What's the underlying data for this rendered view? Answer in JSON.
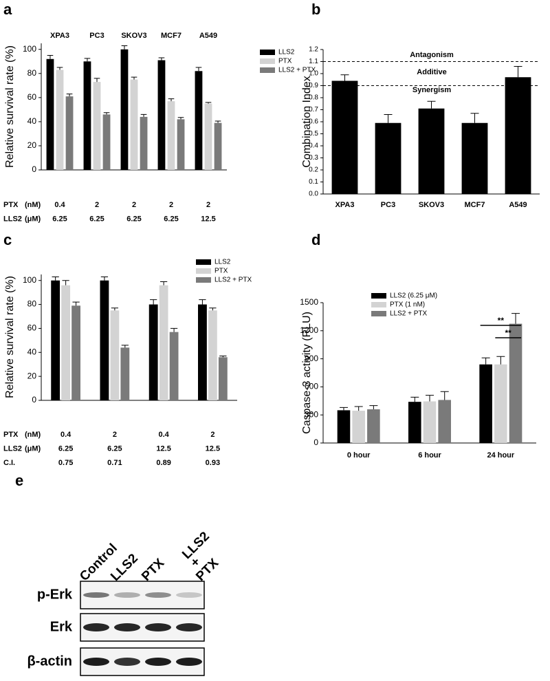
{
  "chart_data": [
    {
      "type": "bar",
      "panel": "a",
      "y_label": "Relative survival rate (%)",
      "categories": [
        "XPA3",
        "PC3",
        "SKOV3",
        "MCF7",
        "A549"
      ],
      "series": [
        {
          "name": "LLS2",
          "color": "#000000",
          "values": [
            92,
            90,
            100,
            91,
            82
          ],
          "errors": [
            3,
            2.5,
            3,
            2,
            3
          ]
        },
        {
          "name": "PTX",
          "color": "#d3d3d3",
          "values": [
            83,
            73,
            75,
            57,
            55
          ],
          "errors": [
            2,
            3,
            2,
            2,
            1
          ]
        },
        {
          "name": "LLS2 + PTX",
          "color": "#7a7a7a",
          "values": [
            61,
            46,
            44,
            42,
            39
          ],
          "errors": [
            2,
            1.5,
            2,
            1.5,
            1.5
          ]
        }
      ],
      "conditions": [
        {
          "label": "PTX",
          "unit": "(nM)",
          "values": [
            0.4,
            2,
            2,
            2,
            2
          ]
        },
        {
          "label": "LLS2",
          "unit": "(μM)",
          "values": [
            6.25,
            6.25,
            6.25,
            6.25,
            12.5
          ]
        }
      ],
      "ylim": [
        0,
        105
      ],
      "yticks": [
        0,
        20,
        40,
        60,
        80,
        100
      ]
    },
    {
      "type": "bar",
      "panel": "b",
      "y_label": "Combination Index",
      "categories": [
        "XPA3",
        "PC3",
        "SKOV3",
        "MCF7",
        "A549"
      ],
      "values": [
        0.94,
        0.59,
        0.71,
        0.59,
        0.97
      ],
      "errors": [
        0.05,
        0.07,
        0.06,
        0.08,
        0.09
      ],
      "color": "#000000",
      "hlines": [
        1.1,
        0.9
      ],
      "annotations": [
        "Antagonism",
        "Additive",
        "Synergism"
      ],
      "ylim": [
        0,
        1.2
      ],
      "yticks": [
        {
          "value": 0,
          "label": "0.0"
        },
        0.1,
        0.2,
        0.3,
        0.4,
        0.5,
        0.6,
        0.7,
        0.8,
        0.9,
        {
          "value": 1,
          "label": "1.0"
        },
        1.1,
        1.2
      ]
    },
    {
      "type": "bar",
      "panel": "c",
      "y_label": "Relative survival rate (%)",
      "series": [
        {
          "name": "LLS2",
          "color": "#000000",
          "values": [
            100,
            100,
            80,
            80
          ],
          "errors": [
            3,
            3,
            4,
            4
          ]
        },
        {
          "name": "PTX",
          "color": "#d3d3d3",
          "values": [
            96,
            75,
            96,
            75
          ],
          "errors": [
            4,
            2,
            3,
            2
          ]
        },
        {
          "name": "LLS2 + PTX",
          "color": "#7a7a7a",
          "values": [
            79,
            44,
            57,
            36
          ],
          "errors": [
            3,
            2,
            3,
            1
          ]
        }
      ],
      "conditions": [
        {
          "label": "PTX",
          "unit": "(nM)",
          "values": [
            0.4,
            2,
            0.4,
            2
          ]
        },
        {
          "label": "LLS2",
          "unit": "(μM)",
          "values": [
            6.25,
            6.25,
            12.5,
            12.5
          ]
        },
        {
          "label": "C.I.",
          "values": [
            0.75,
            0.71,
            0.89,
            0.93
          ]
        }
      ],
      "ylim": [
        0,
        105
      ],
      "yticks": [
        0,
        20,
        40,
        60,
        80,
        100
      ]
    },
    {
      "type": "bar",
      "panel": "d",
      "y_label": "Caspase-3 activity (RLU)",
      "categories": [
        "0 hour",
        "6 hour",
        "24 hour"
      ],
      "series": [
        {
          "name": "LLS2 (6.25 μM)",
          "color": "#000000",
          "values": [
            350,
            440,
            840
          ],
          "errors": [
            30,
            50,
            70
          ]
        },
        {
          "name": "PTX (1 nM)",
          "color": "#d3d3d3",
          "values": [
            345,
            445,
            840
          ],
          "errors": [
            45,
            65,
            85
          ]
        },
        {
          "name": "LLS2 + PTX",
          "color": "#7a7a7a",
          "values": [
            360,
            460,
            1275
          ],
          "errors": [
            40,
            90,
            110
          ]
        }
      ],
      "significance": [
        "**",
        "**"
      ],
      "ylim": [
        0,
        1500
      ],
      "yticks": [
        0,
        300,
        600,
        900,
        1200,
        1500
      ]
    }
  ],
  "blot": {
    "panel": "e",
    "lanes": [
      [
        "Control"
      ],
      [
        "LLS2"
      ],
      [
        "PTX"
      ],
      [
        "LLS2",
        "+",
        "PTX"
      ]
    ],
    "rows": [
      "p-Erk",
      "Erk",
      "β-actin"
    ]
  }
}
